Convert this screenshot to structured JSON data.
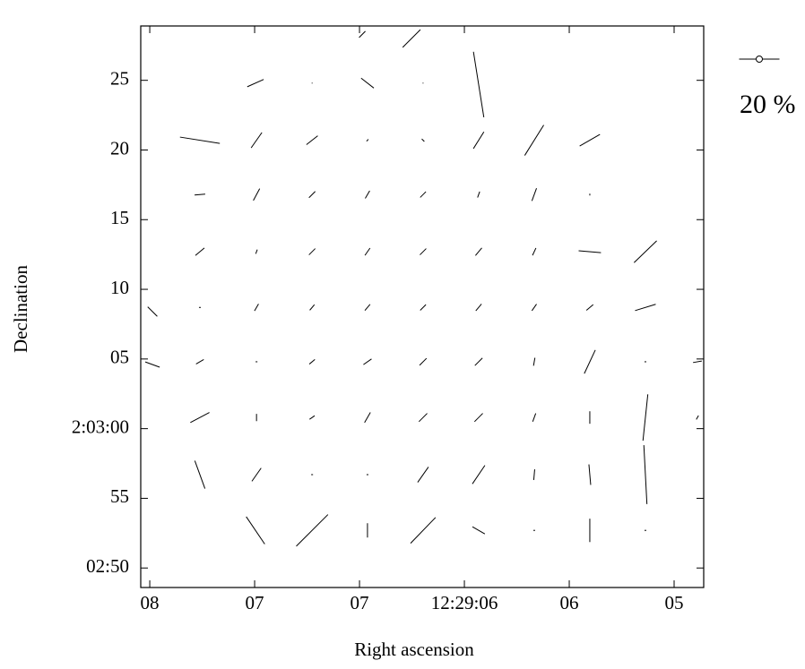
{
  "chart_data": {
    "type": "vector",
    "xlabel": "Right ascension",
    "ylabel": "Declination",
    "xlim": [
      8.043,
      5.359
    ],
    "ylim": [
      -11.4,
      28.9
    ],
    "xticks": [
      {
        "value": 8,
        "label": "08"
      },
      {
        "value": 7.5,
        "label": "07"
      },
      {
        "value": 7,
        "label": "07"
      },
      {
        "value": 6.5,
        "label": "12:29:06"
      },
      {
        "value": 6,
        "label": "06"
      },
      {
        "value": 5.5,
        "label": "05"
      }
    ],
    "yticks": [
      25,
      20,
      15,
      10,
      {
        "value": 5,
        "label": "05"
      },
      {
        "value": 0,
        "label": "2:03:00"
      },
      {
        "value": -5,
        "label": "55"
      },
      {
        "value": -10,
        "label": "02:50"
      }
    ],
    "color": "#000000",
    "legend": {
      "value": 20,
      "label": "20 %"
    },
    "x": [
      6.987,
      6.752,
      6.432,
      7.496,
      7.226,
      6.962,
      6.697,
      7.761,
      7.491,
      7.226,
      6.962,
      6.697,
      6.432,
      6.167,
      5.902,
      7.761,
      7.491,
      7.226,
      6.962,
      6.697,
      6.432,
      6.167,
      5.902,
      7.761,
      7.491,
      7.226,
      6.962,
      6.697,
      6.432,
      6.167,
      5.902,
      5.637,
      7.987,
      7.761,
      7.491,
      7.226,
      6.962,
      6.697,
      6.432,
      6.167,
      5.902,
      5.637,
      7.987,
      7.761,
      7.491,
      7.226,
      6.962,
      6.697,
      6.432,
      6.167,
      5.902,
      5.637,
      5.389,
      7.761,
      7.491,
      7.226,
      6.962,
      6.697,
      6.432,
      6.167,
      5.902,
      5.637,
      5.389,
      7.761,
      7.491,
      7.226,
      6.962,
      6.697,
      6.432,
      6.167,
      5.902,
      5.637,
      7.496,
      7.226,
      6.962,
      6.697,
      6.432,
      6.167,
      5.902,
      5.637
    ],
    "y": [
      28.3,
      28.0,
      24.7,
      24.8,
      24.8,
      24.8,
      24.8,
      20.7,
      20.7,
      20.7,
      20.7,
      20.7,
      20.7,
      20.7,
      20.7,
      16.8,
      16.8,
      16.8,
      16.8,
      16.8,
      16.8,
      16.8,
      16.8,
      12.7,
      12.7,
      12.7,
      12.7,
      12.7,
      12.7,
      12.7,
      12.7,
      12.7,
      8.4,
      8.7,
      8.7,
      8.7,
      8.7,
      8.7,
      8.7,
      8.7,
      8.7,
      8.7,
      4.6,
      4.8,
      4.8,
      4.8,
      4.8,
      4.8,
      4.8,
      4.8,
      4.8,
      4.8,
      4.8,
      0.8,
      0.8,
      0.8,
      0.8,
      0.8,
      0.8,
      0.8,
      0.8,
      0.8,
      0.8,
      -3.3,
      -3.3,
      -3.3,
      -3.3,
      -3.3,
      -3.3,
      -3.3,
      -3.3,
      -3.3,
      -7.3,
      -7.3,
      -7.3,
      -7.3,
      -7.3,
      -7.3,
      -7.3,
      -7.3
    ],
    "values": [
      4.4,
      12.4,
      32.9,
      8.9,
      0.4,
      8,
      0.4,
      20,
      9.3,
      7.1,
      1.3,
      1.8,
      9.8,
      17.8,
      11.6,
      5.3,
      6.7,
      4.4,
      4.4,
      4,
      3.1,
      6.7,
      0.9,
      5.8,
      2.2,
      4.4,
      4.4,
      4.4,
      4.9,
      4,
      11.1,
      15.6,
      6.7,
      0.9,
      4,
      3.6,
      4,
      4,
      4.4,
      4,
      4.4,
      10.7,
      7.6,
      4.4,
      0.9,
      3.6,
      4.9,
      4.9,
      5.3,
      4,
      12.9,
      0.9,
      4.4,
      10.7,
      3.6,
      3.1,
      5.8,
      5.8,
      5.8,
      4.4,
      6.2,
      23.1,
      2.2,
      14.7,
      8,
      0.9,
      0.9,
      9.3,
      11.1,
      5.3,
      10.2,
      29.3,
      16.4,
      22.2,
      7.1,
      17.8,
      7.1,
      0.9,
      11.6,
      0.9
    ],
    "angles": [
      135,
      135,
      9,
      114,
      90,
      52,
      90,
      81,
      145,
      128,
      135,
      45,
      148,
      148,
      120,
      95,
      152,
      135,
      150,
      135,
      160,
      160,
      0,
      130,
      160,
      135,
      145,
      135,
      140,
      155,
      85,
      134,
      45,
      90,
      150,
      140,
      140,
      135,
      140,
      145,
      130,
      107,
      70,
      120,
      90,
      130,
      125,
      135,
      135,
      170,
      155,
      90,
      100,
      118,
      0,
      125,
      150,
      135,
      135,
      160,
      0,
      174,
      150,
      20,
      145,
      90,
      90,
      145,
      146,
      175,
      5,
      3,
      34,
      135,
      0,
      136,
      60,
      90,
      0,
      90
    ]
  }
}
